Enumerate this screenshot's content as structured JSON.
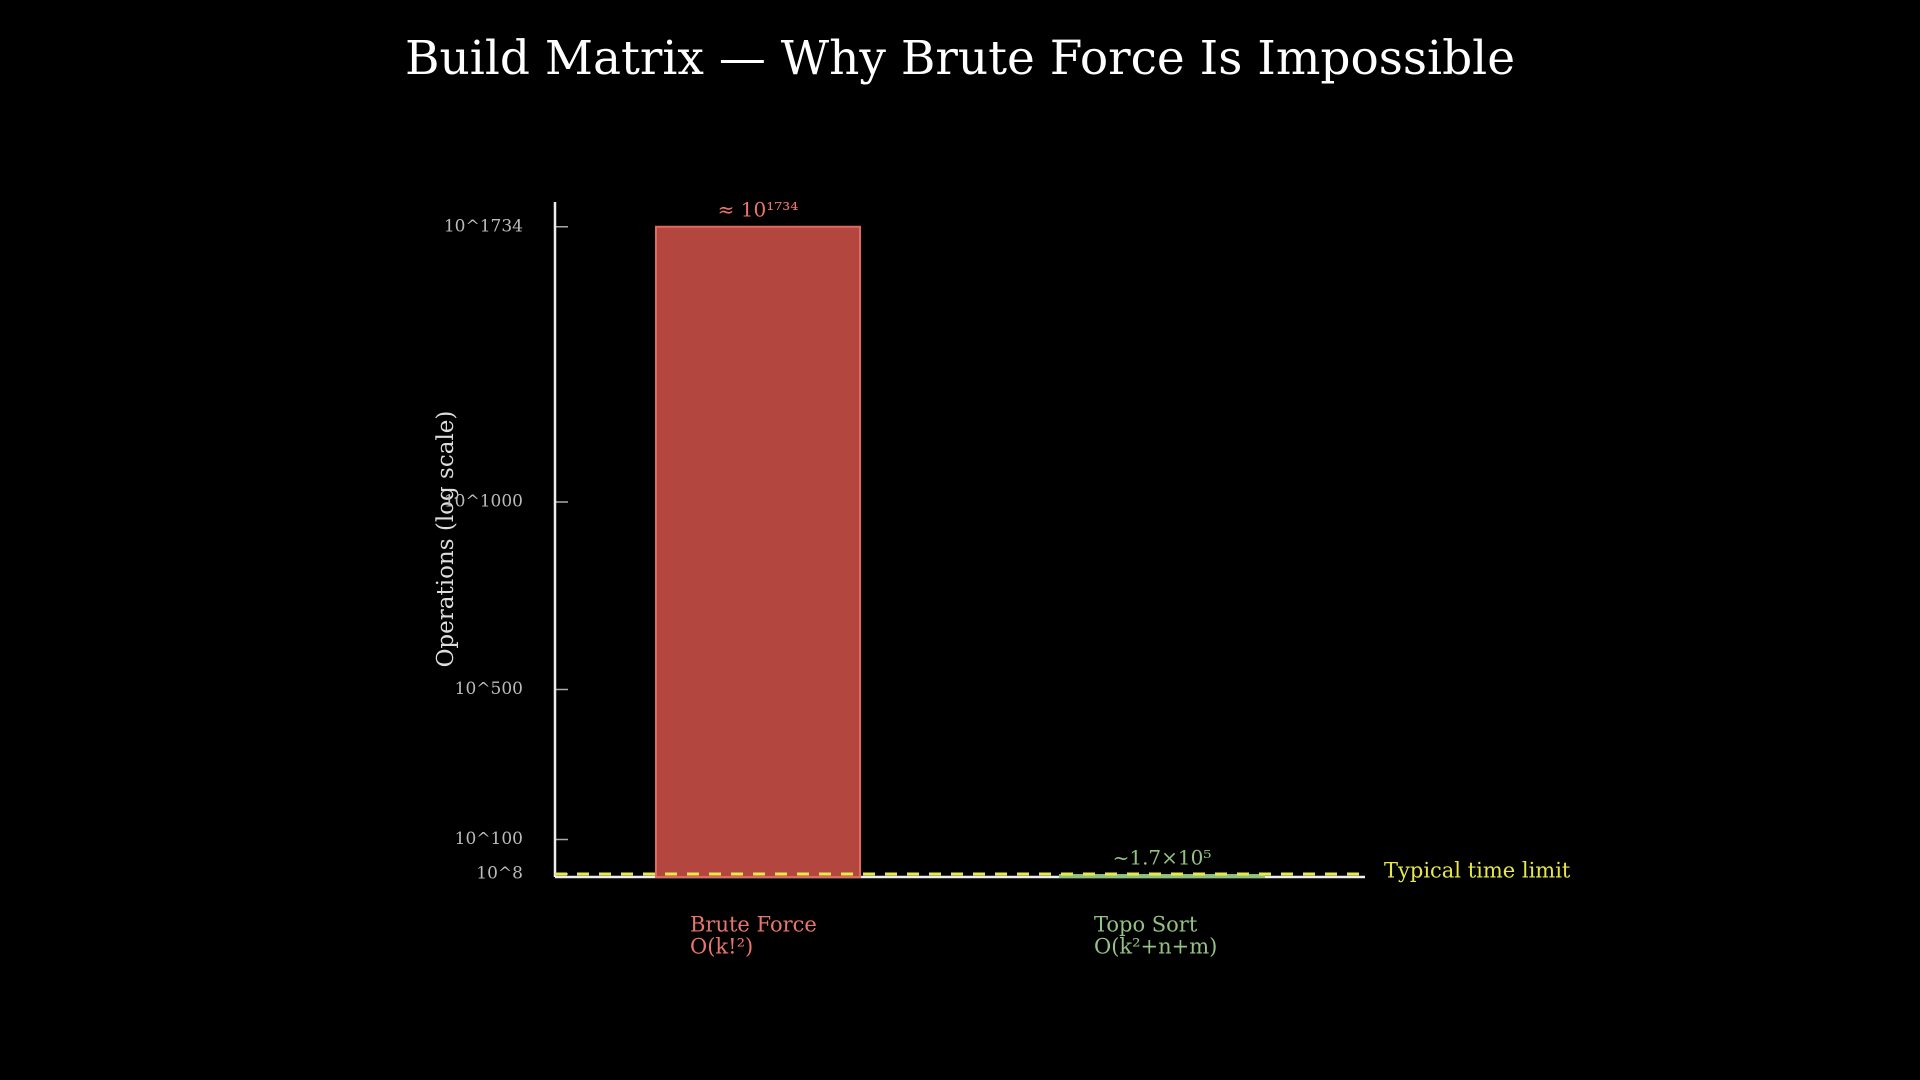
{
  "chart_data": {
    "type": "bar",
    "title": "Build Matrix — Why Brute Force Is Impossible",
    "y_label": "Operations (log scale)",
    "categories": [
      "Brute Force",
      "Topo Sort"
    ],
    "category_notes": [
      "O(k!²)",
      "O(k²+n+m)"
    ],
    "values": [
      1734,
      5.23
    ],
    "value_labels": [
      "≈ 10¹⁷³⁴",
      "~1.7×10⁵"
    ],
    "colors": [
      "#b3463f",
      "#5e8a46"
    ],
    "edge_colors": [
      "#e06a5e",
      "#8fc27c"
    ],
    "label_colors": [
      "#e8766a",
      "#93c283"
    ],
    "ylim": [
      0,
      1800
    ],
    "yticks": [
      {
        "value": 8,
        "label": "10^8"
      },
      {
        "value": 100,
        "label": "10^100"
      },
      {
        "value": 500,
        "label": "10^500"
      },
      {
        "value": 1000,
        "label": "10^1000"
      },
      {
        "value": 1734,
        "label": "10^1734"
      }
    ],
    "reference_line": {
      "value": 8,
      "label": "Typical time limit",
      "color": "#e8e84a"
    }
  }
}
